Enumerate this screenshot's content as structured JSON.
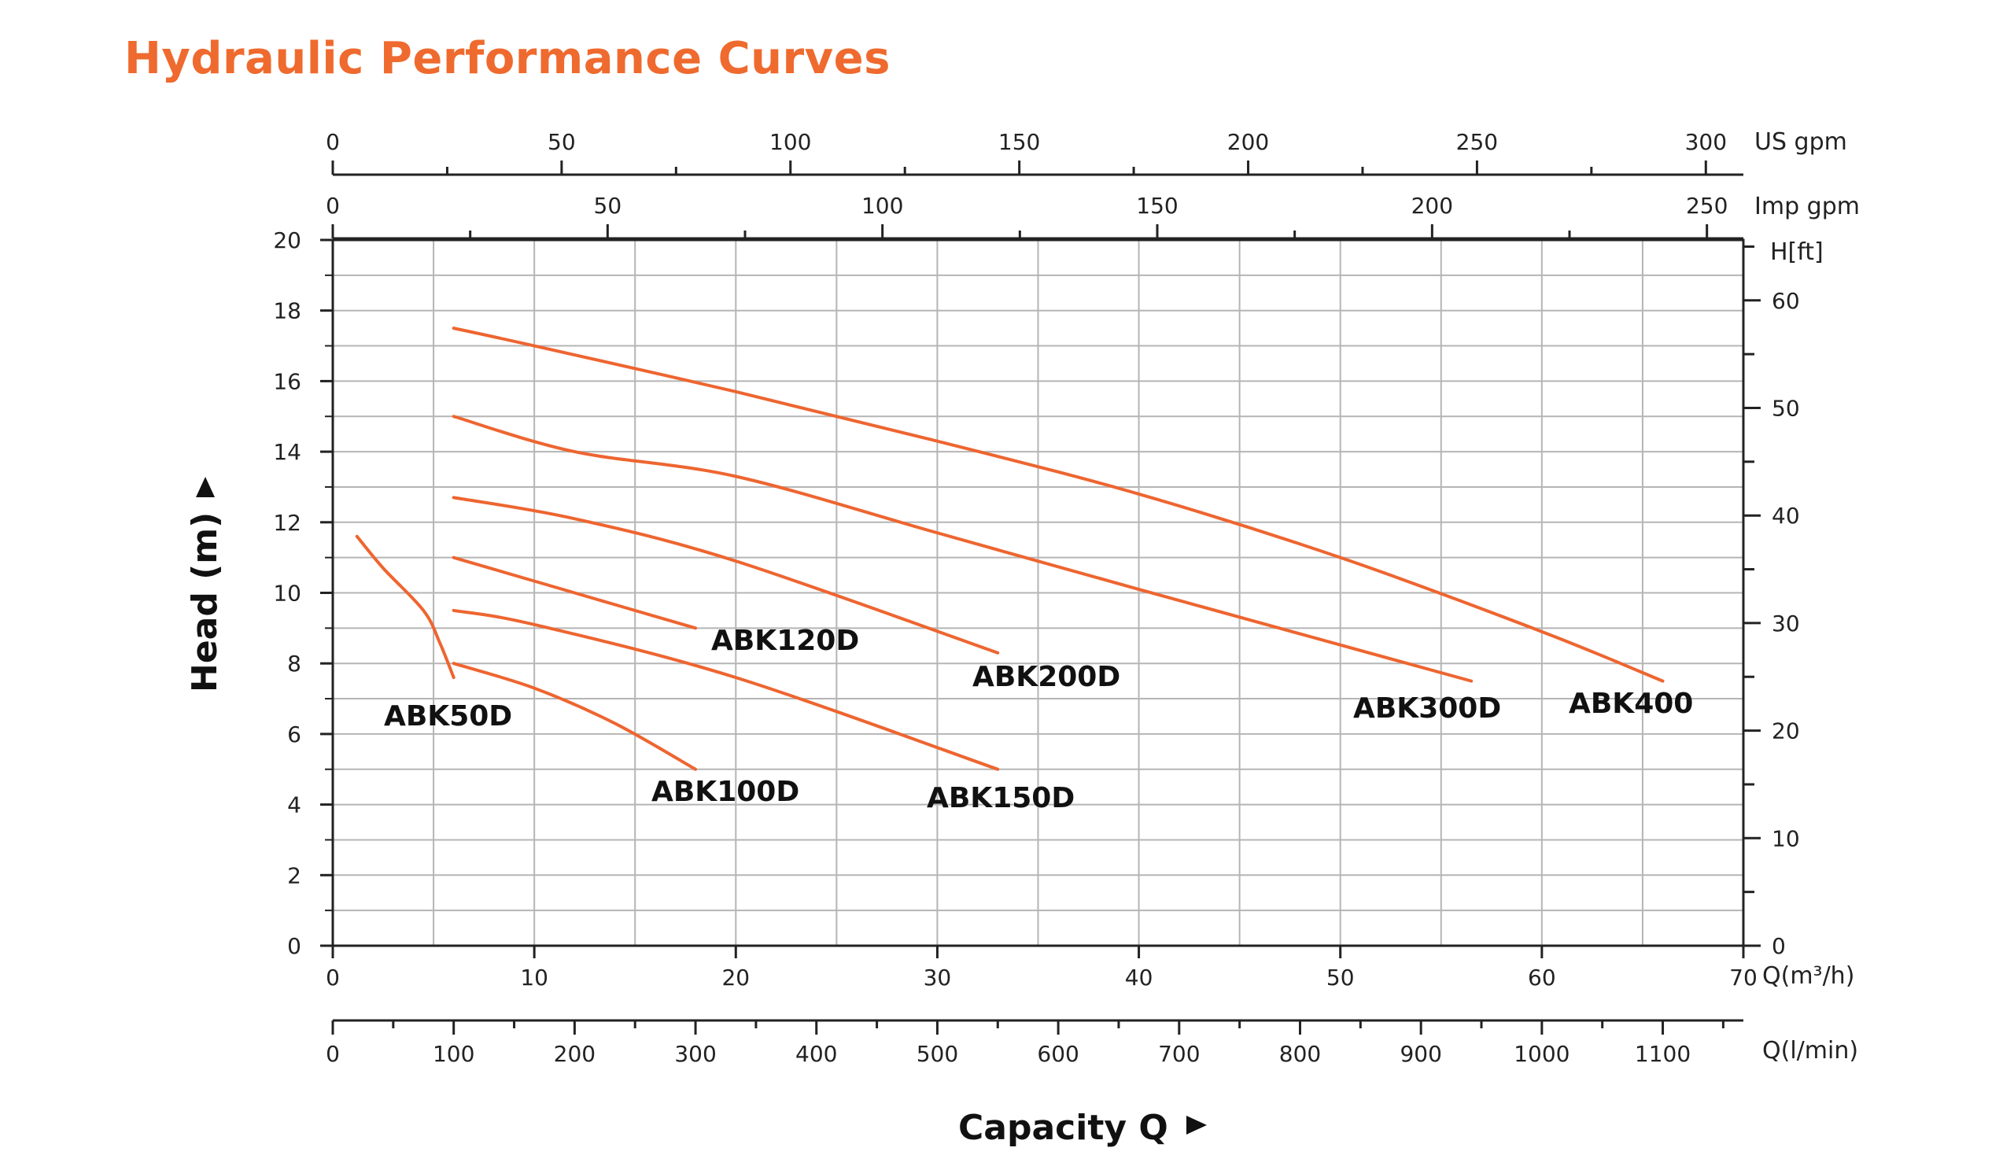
{
  "title": "Hydraulic Performance Curves",
  "colors": {
    "curve": "#ee6530",
    "title": "#ef6a2e",
    "grid": "#b5b5b5",
    "axis": "#222222"
  },
  "chart_data": {
    "type": "line",
    "title": "Hydraulic Performance Curves",
    "xlabel": "Capacity Q",
    "ylabel": "Head (m)",
    "x_unit": "Q(m³/h)",
    "xlim": [
      0,
      70
    ],
    "ylim": [
      0,
      20
    ],
    "x_ticks": [
      "0",
      "10",
      "20",
      "30",
      "40",
      "50",
      "60",
      "70"
    ],
    "y_ticks": [
      "0",
      "2",
      "4",
      "6",
      "8",
      "10",
      "12",
      "14",
      "16",
      "18",
      "20"
    ],
    "secondary_axes": {
      "us_gpm": {
        "label": "US gpm",
        "ticks": [
          "0",
          "50",
          "100",
          "150",
          "200",
          "250",
          "300"
        ]
      },
      "imp_gpm": {
        "label": "Imp gpm",
        "ticks": [
          "0",
          "50",
          "100",
          "150",
          "200",
          "250"
        ]
      },
      "l_min": {
        "label": "Q(l/min)",
        "ticks": [
          "0",
          "100",
          "200",
          "300",
          "400",
          "500",
          "600",
          "700",
          "800",
          "900",
          "1000",
          "1100"
        ]
      },
      "h_ft": {
        "label": "H[ft]",
        "ticks": [
          "0",
          "10",
          "20",
          "30",
          "40",
          "50",
          "60"
        ]
      }
    },
    "series": [
      {
        "name": "ABK50D",
        "x": [
          1.2,
          2.5,
          4.5,
          5.3,
          6.0
        ],
        "y": [
          11.6,
          10.7,
          9.5,
          8.6,
          7.6
        ]
      },
      {
        "name": "ABK100D",
        "x": [
          6,
          10,
          14,
          18
        ],
        "y": [
          8.0,
          7.3,
          6.3,
          5.0
        ]
      },
      {
        "name": "ABK120D",
        "x": [
          6,
          12,
          18
        ],
        "y": [
          11.0,
          10.0,
          9.0
        ]
      },
      {
        "name": "ABK150D",
        "x": [
          6,
          10,
          20,
          33
        ],
        "y": [
          9.5,
          9.1,
          7.6,
          5.0
        ]
      },
      {
        "name": "ABK200D",
        "x": [
          6,
          12,
          20,
          33
        ],
        "y": [
          12.7,
          12.1,
          10.9,
          8.3
        ]
      },
      {
        "name": "ABK300D",
        "x": [
          6,
          12,
          20,
          30,
          40,
          56.5
        ],
        "y": [
          15.0,
          14.0,
          13.3,
          11.7,
          10.1,
          7.5
        ]
      },
      {
        "name": "ABK400",
        "x": [
          6,
          10,
          20,
          30,
          40,
          50,
          60,
          66
        ],
        "y": [
          17.5,
          17.0,
          15.7,
          14.3,
          12.8,
          11.0,
          8.9,
          7.5
        ]
      }
    ]
  }
}
